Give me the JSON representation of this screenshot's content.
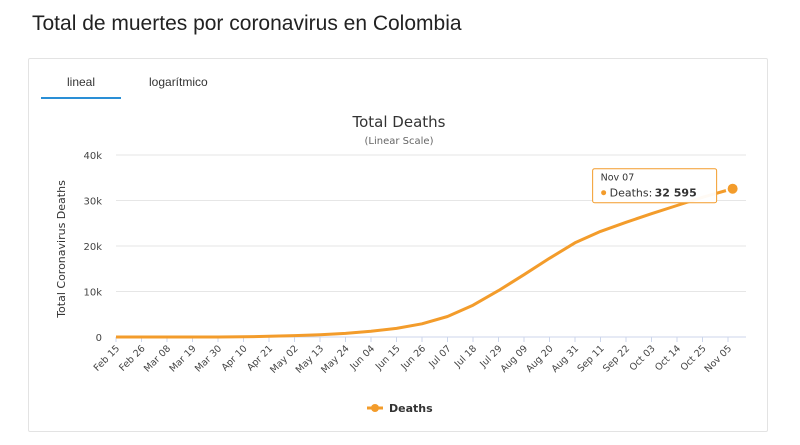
{
  "page": {
    "title": "Total de muertes por coronavirus en Colombia"
  },
  "tabs": [
    {
      "label": "lineal",
      "active": true
    },
    {
      "label": "logarítmico",
      "active": false
    }
  ],
  "chart_data": {
    "type": "line",
    "title": "Total Deaths",
    "subtitle": "(Linear Scale)",
    "ylabel": "Total Coronavirus Deaths",
    "ylim": [
      0,
      40000
    ],
    "yticks": [
      0,
      10000,
      20000,
      30000,
      40000
    ],
    "ytick_labels": [
      "0",
      "10k",
      "20k",
      "30k",
      "40k"
    ],
    "xtick_labels": [
      "Feb 15",
      "Feb 26",
      "Mar 08",
      "Mar 19",
      "Mar 30",
      "Apr 10",
      "Apr 21",
      "May 02",
      "May 13",
      "May 24",
      "Jun 04",
      "Jun 15",
      "Jun 26",
      "Jul 07",
      "Jul 18",
      "Jul 29",
      "Aug 09",
      "Aug 20",
      "Aug 31",
      "Sep 11",
      "Sep 22",
      "Oct 03",
      "Oct 14",
      "Oct 25",
      "Nov 05"
    ],
    "x": [
      "Feb 15",
      "Feb 26",
      "Mar 08",
      "Mar 19",
      "Mar 30",
      "Apr 10",
      "Apr 21",
      "May 02",
      "May 13",
      "May 24",
      "Jun 04",
      "Jun 15",
      "Jun 26",
      "Jul 07",
      "Jul 18",
      "Jul 29",
      "Aug 09",
      "Aug 20",
      "Aug 31",
      "Sep 11",
      "Sep 22",
      "Oct 03",
      "Oct 14",
      "Oct 25",
      "Nov 05",
      "Nov 07"
    ],
    "series": [
      {
        "name": "Deaths",
        "color": "#f39c2b",
        "values": [
          0,
          0,
          0,
          0,
          10,
          50,
          150,
          300,
          500,
          800,
          1250,
          1900,
          2900,
          4500,
          7000,
          10200,
          13700,
          17300,
          20700,
          23200,
          25200,
          27100,
          28900,
          30700,
          32300,
          32595
        ]
      }
    ],
    "legend": {
      "position": "bottom-center"
    },
    "tooltip": {
      "date": "Nov 07",
      "label": "Deaths:",
      "value": "32 595"
    },
    "grid": true
  }
}
